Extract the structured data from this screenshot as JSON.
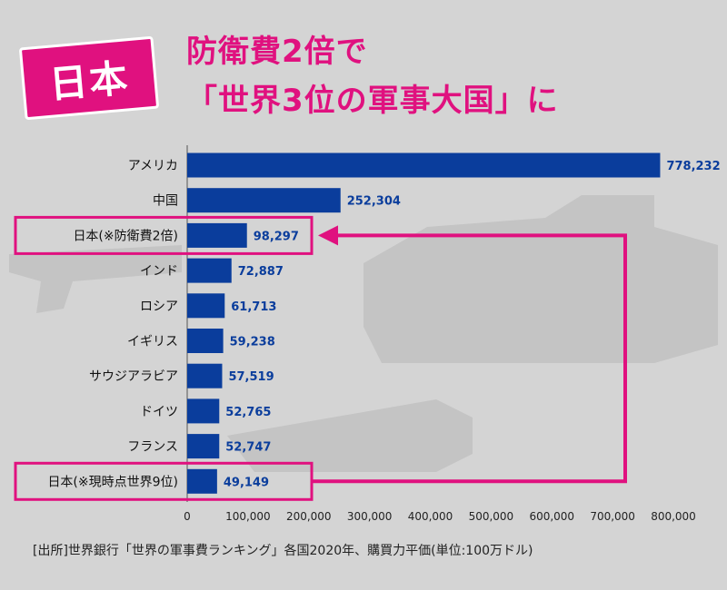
{
  "badge": "日本",
  "headline_line1": "防衛費2倍で",
  "headline_line2": "「世界3位の軍事大国」に",
  "source": "[出所]世界銀行「世界の軍事費ランキング」各国2020年、購買力平価(単位:100万ドル)",
  "colors": {
    "bar": "#0a3d9c",
    "accent": "#e0117f",
    "value_text": "#0a3d9c",
    "background": "#d4d4d4"
  },
  "chart_data": {
    "type": "bar",
    "orientation": "horizontal",
    "categories": [
      "アメリカ",
      "中国",
      "日本(※防衛費2倍)",
      "インド",
      "ロシア",
      "イギリス",
      "サウジアラビア",
      "ドイツ",
      "フランス",
      "日本(※現時点世界9位)"
    ],
    "values": [
      778232,
      252304,
      98297,
      72887,
      61713,
      59238,
      57519,
      52765,
      52747,
      49149
    ],
    "value_labels": [
      "778,232",
      "252,304",
      "98,297",
      "72,887",
      "61,713",
      "59,238",
      "57,519",
      "52,765",
      "52,747",
      "49,149"
    ],
    "highlighted": [
      "日本(※防衛費2倍)",
      "日本(※現時点世界9位)"
    ],
    "xlim": [
      0,
      800000
    ],
    "x_ticks": [
      0,
      100000,
      200000,
      300000,
      400000,
      500000,
      600000,
      700000,
      800000
    ],
    "x_tick_labels": [
      "0",
      "100,000",
      "200,000",
      "300,000",
      "400,000",
      "500,000",
      "600,000",
      "700,000",
      "800,000"
    ],
    "grid": false,
    "annotation": "arrow from 日本(※現時点世界9位) up to 日本(※防衛費2倍)"
  }
}
